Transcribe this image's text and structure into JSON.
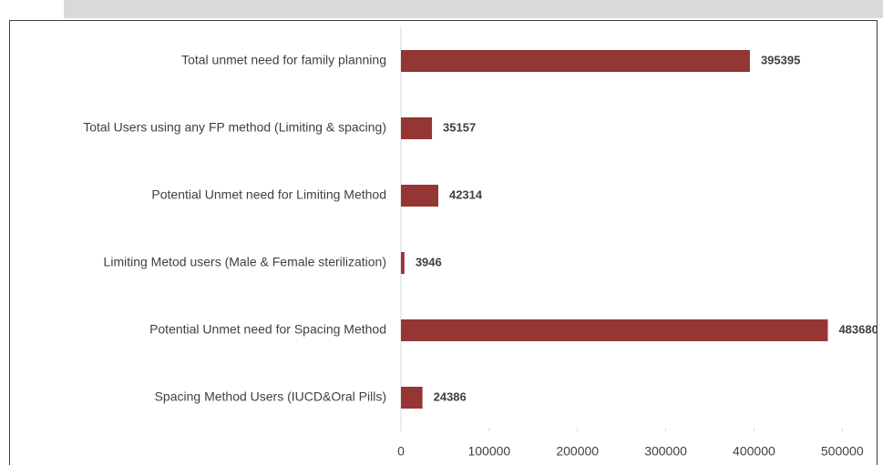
{
  "chart_data": {
    "type": "bar",
    "orientation": "horizontal",
    "categories": [
      "Total unmet need for family planning",
      "Total Users using any FP method (Limiting & spacing)",
      "Potential Unmet need for Limiting Method",
      "Limiting Metod users (Male & Female sterilization)",
      "Potential Unmet need for Spacing  Method",
      "Spacing Method Users  (IUCD&Oral Pills)"
    ],
    "values": [
      395395,
      35157,
      42314,
      3946,
      483680,
      24386
    ],
    "color": "#943634",
    "xlim": [
      0,
      540000
    ],
    "xticks": [
      0,
      100000,
      200000,
      300000,
      400000,
      500000
    ]
  }
}
